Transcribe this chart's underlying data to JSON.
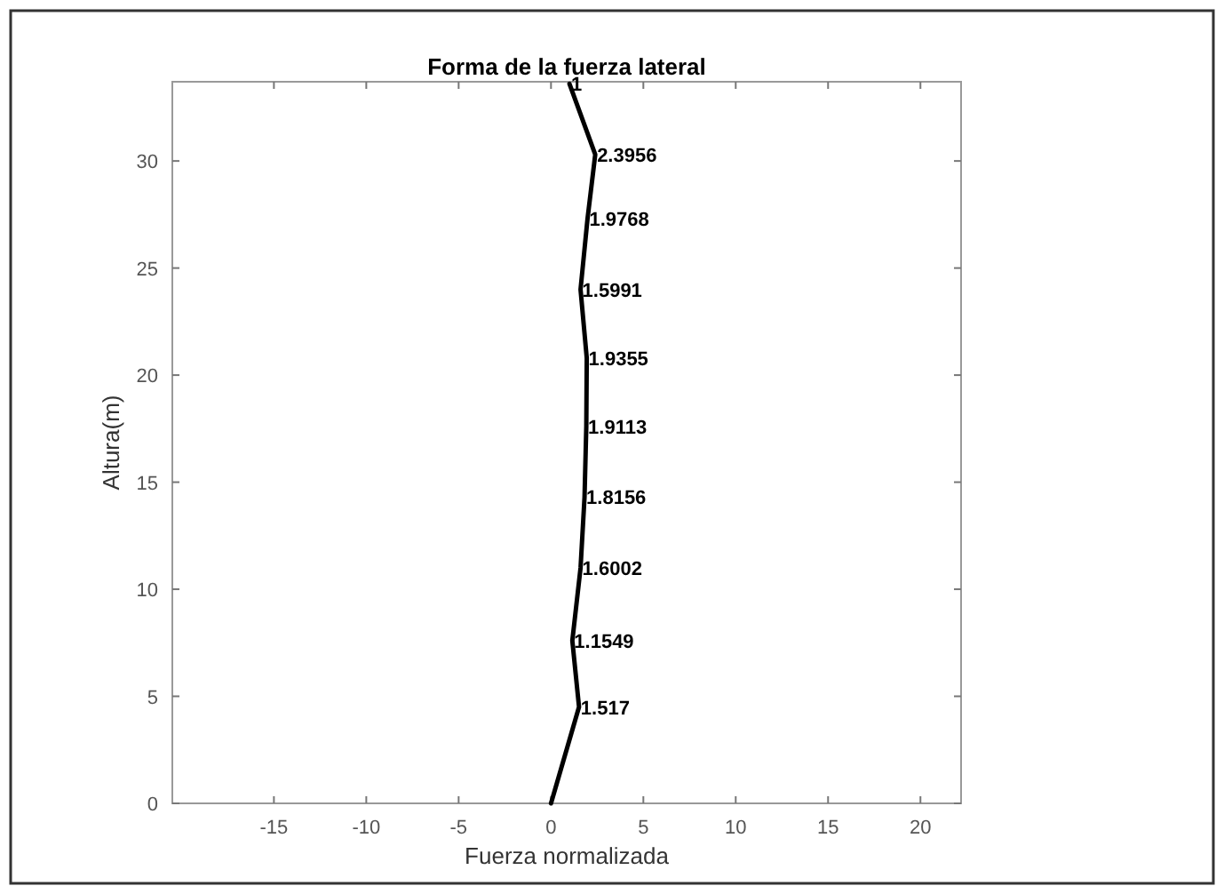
{
  "chart_data": {
    "type": "line",
    "title": "Forma de la fuerza lateral",
    "xlabel": "Fuerza normalizada",
    "ylabel": "Altura(m)",
    "x": [
      0,
      1.517,
      1.1549,
      1.6002,
      1.8156,
      1.9113,
      1.9355,
      1.5991,
      1.9768,
      2.3956,
      1
    ],
    "series": [
      {
        "color": "#000000",
        "values": [
          0,
          4.5,
          7.6,
          11.0,
          14.3,
          17.6,
          20.8,
          24.0,
          27.3,
          30.3,
          33.6
        ]
      }
    ],
    "annotations": [
      {
        "text": "1.517",
        "x": 1.517,
        "y": 4.5
      },
      {
        "text": "1.1549",
        "x": 1.1549,
        "y": 7.6
      },
      {
        "text": "1.6002",
        "x": 1.6002,
        "y": 11.0
      },
      {
        "text": "1.8156",
        "x": 1.8156,
        "y": 14.3
      },
      {
        "text": "1.9113",
        "x": 1.9113,
        "y": 17.6
      },
      {
        "text": "1.9355",
        "x": 1.9355,
        "y": 20.8
      },
      {
        "text": "1.5991",
        "x": 1.5991,
        "y": 24.0
      },
      {
        "text": "1.9768",
        "x": 1.9768,
        "y": 27.3
      },
      {
        "text": "2.3956",
        "x": 2.3956,
        "y": 30.3
      },
      {
        "text": "1",
        "x": 1,
        "y": 33.6
      }
    ],
    "xlim": [
      -20.5,
      22.2
    ],
    "xticks": [
      -15,
      -10,
      -5,
      0,
      5,
      10,
      15,
      20
    ],
    "ylim": [
      0,
      33.7
    ],
    "yticks": [
      0,
      5,
      10,
      15,
      20,
      25,
      30
    ],
    "grid": false,
    "marker": "none",
    "line_style": "solid"
  }
}
